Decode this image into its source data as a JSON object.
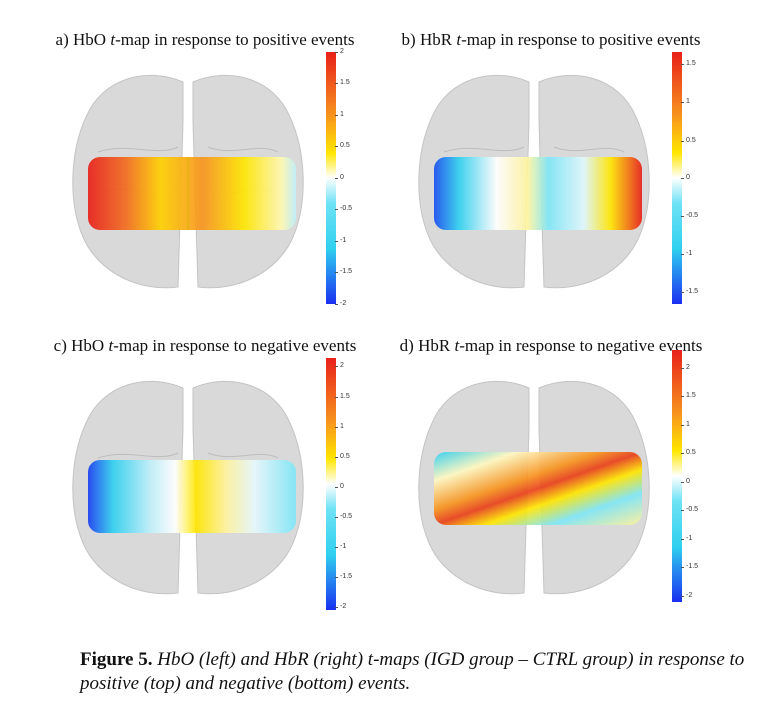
{
  "panels": [
    {
      "letter": "a) ",
      "prefix": "HbO ",
      "tvar": "t",
      "suffix": "-map in response to positive events",
      "ticks": [
        "2",
        "1.5",
        "1",
        "0.5",
        "0",
        "-0.5",
        "-1",
        "-1.5",
        "-2"
      ]
    },
    {
      "letter": "b) ",
      "prefix": "HbR ",
      "tvar": "t",
      "suffix": "-map in response to positive events",
      "ticks": [
        "1.5",
        "1",
        "0.5",
        "0",
        "-0.5",
        "-1",
        "-1.5"
      ]
    },
    {
      "letter": "c) ",
      "prefix": "HbO ",
      "tvar": "t",
      "suffix": "-map in response to negative events",
      "ticks": [
        "2",
        "1.5",
        "1",
        "0.5",
        "0",
        "-0.5",
        "-1",
        "-1.5",
        "-2"
      ]
    },
    {
      "letter": "d) ",
      "prefix": "HbR ",
      "tvar": "t",
      "suffix": "-map in response to negative events",
      "ticks": [
        "2",
        "1.5",
        "1",
        "0.5",
        "0",
        "-0.5",
        "-1",
        "-1.5",
        "-2"
      ]
    }
  ],
  "caption": {
    "label": "Figure 5.",
    "text": " HbO (left) and HbR (right) t-maps (IGD group – CTRL group) in response to positive (top) and negative (bottom) events."
  },
  "colors": {
    "red": "#e8201a",
    "orange": "#f7931e",
    "yellow": "#ffe600",
    "white": "#ffffff",
    "cyan": "#30d0ef",
    "blue": "#1a2ff0",
    "brain": "#d9d9d9"
  }
}
